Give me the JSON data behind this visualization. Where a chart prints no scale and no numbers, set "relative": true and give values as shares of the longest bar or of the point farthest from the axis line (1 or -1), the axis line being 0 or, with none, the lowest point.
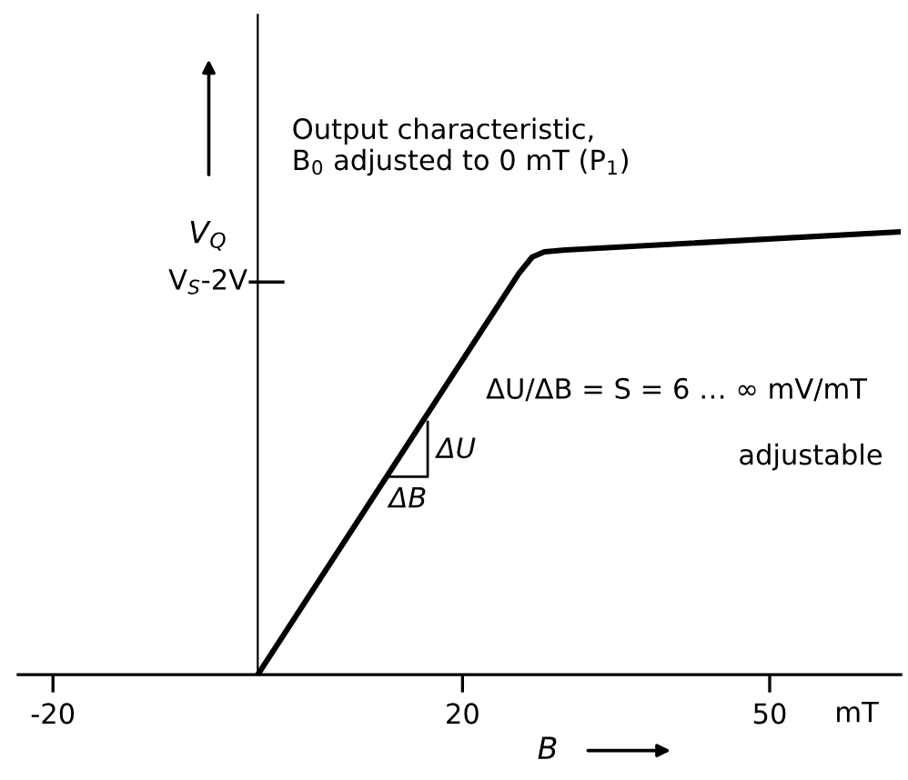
{
  "chart_data": {
    "type": "line",
    "relative": true,
    "x": [
      0,
      25.5,
      26.8,
      28.0,
      30.0,
      62.8
    ],
    "series": [
      {
        "color": "#000000",
        "values": [
          0,
          0.906,
          0.943,
          0.955,
          0.959,
          1.0
        ]
      }
    ],
    "xlim": [
      -23.4,
      62.8
    ],
    "xticks": [
      -20,
      20,
      50
    ],
    "xlabel": "B",
    "ylabel": "V$_{Q}$",
    "annotations": [
      "V$_{S}$-2V",
      "Output characteristic,\nB$_{0}$ adjusted to 0 mT (P$_{1}$)",
      "ΔU/ΔB = S = 6 … ∞ mV/mT",
      "adjustable",
      "ΔU",
      "ΔB",
      "mT"
    ],
    "grid": false,
    "legend": false,
    "marker": "none",
    "line_style": "solid"
  }
}
